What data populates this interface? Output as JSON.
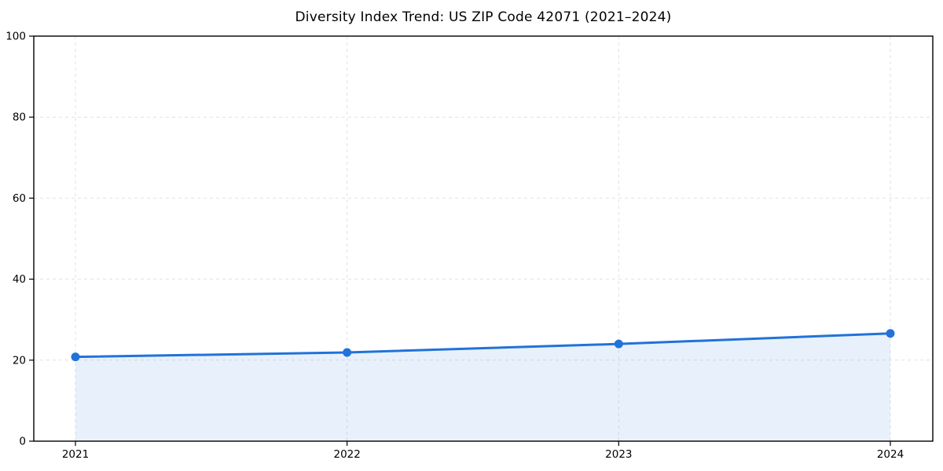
{
  "chart_data": {
    "type": "area",
    "title": "Diversity Index Trend: US ZIP Code 42071 (2021–2024)",
    "categories": [
      "2021",
      "2022",
      "2023",
      "2024"
    ],
    "values": [
      20.8,
      21.9,
      24.0,
      26.6
    ],
    "xlabel": "",
    "ylabel": "",
    "ylim": [
      0,
      100
    ],
    "y_ticks": [
      0,
      20,
      40,
      60,
      80,
      100
    ],
    "grid": "dashed-both-axes",
    "legend_position": "none",
    "colors": {
      "line": "#2272d9",
      "marker": "#2272d9",
      "fill": "rgba(34,114,217,0.10)",
      "grid": "#dcdcdc",
      "axis": "#000000",
      "text": "#000000",
      "background": "#ffffff"
    }
  }
}
